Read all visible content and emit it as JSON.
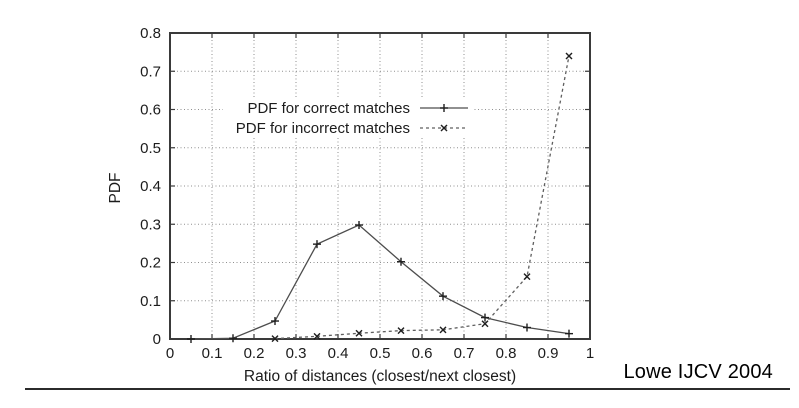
{
  "page": {
    "background": "#ffffff"
  },
  "colors": {
    "background": "#ffffff",
    "frame": "#3a3a3a",
    "grid": "#8f8f8f",
    "text": "#1c1c1c",
    "marker": "#1f1f1f",
    "rule": "#2b2b2b"
  },
  "chart_data": {
    "type": "line",
    "title": "",
    "xlabel": "Ratio of distances (closest/next closest)",
    "ylabel": "PDF",
    "xlim": [
      0,
      1
    ],
    "ylim": [
      0,
      0.8
    ],
    "grid": true,
    "legend_position": "inside upper-left",
    "xticks": [
      {
        "v": 0,
        "label": "0"
      },
      {
        "v": 0.1,
        "label": "0.1"
      },
      {
        "v": 0.2,
        "label": "0.2"
      },
      {
        "v": 0.3,
        "label": "0.3"
      },
      {
        "v": 0.4,
        "label": "0.4"
      },
      {
        "v": 0.5,
        "label": "0.5"
      },
      {
        "v": 0.6,
        "label": "0.6"
      },
      {
        "v": 0.7,
        "label": "0.7"
      },
      {
        "v": 0.8,
        "label": "0.8"
      },
      {
        "v": 0.9,
        "label": "0.9"
      },
      {
        "v": 1,
        "label": "1"
      }
    ],
    "yticks": [
      {
        "v": 0,
        "label": "0"
      },
      {
        "v": 0.1,
        "label": "0.1"
      },
      {
        "v": 0.2,
        "label": "0.2"
      },
      {
        "v": 0.3,
        "label": "0.3"
      },
      {
        "v": 0.4,
        "label": "0.4"
      },
      {
        "v": 0.5,
        "label": "0.5"
      },
      {
        "v": 0.6,
        "label": "0.6"
      },
      {
        "v": 0.7,
        "label": "0.7"
      },
      {
        "v": 0.8,
        "label": "0.8"
      }
    ],
    "series": [
      {
        "id": "correct-matches",
        "name": "PDF for correct matches",
        "line": "solid",
        "marker": "plus",
        "color": "#4d4d4d",
        "x": [
          0.05,
          0.15,
          0.25,
          0.35,
          0.45,
          0.55,
          0.65,
          0.75,
          0.85,
          0.95
        ],
        "y": [
          0.0,
          0.002,
          0.047,
          0.248,
          0.298,
          0.202,
          0.112,
          0.056,
          0.03,
          0.014
        ]
      },
      {
        "id": "incorrect-matches",
        "name": "PDF for incorrect matches",
        "line": "dashed",
        "marker": "cross",
        "color": "#5f5f5f",
        "x": [
          0.25,
          0.35,
          0.45,
          0.55,
          0.65,
          0.75,
          0.85,
          0.95
        ],
        "y": [
          0.001,
          0.007,
          0.015,
          0.022,
          0.024,
          0.04,
          0.163,
          0.74
        ]
      }
    ]
  },
  "caption": {
    "text": "Lowe IJCV 2004"
  }
}
